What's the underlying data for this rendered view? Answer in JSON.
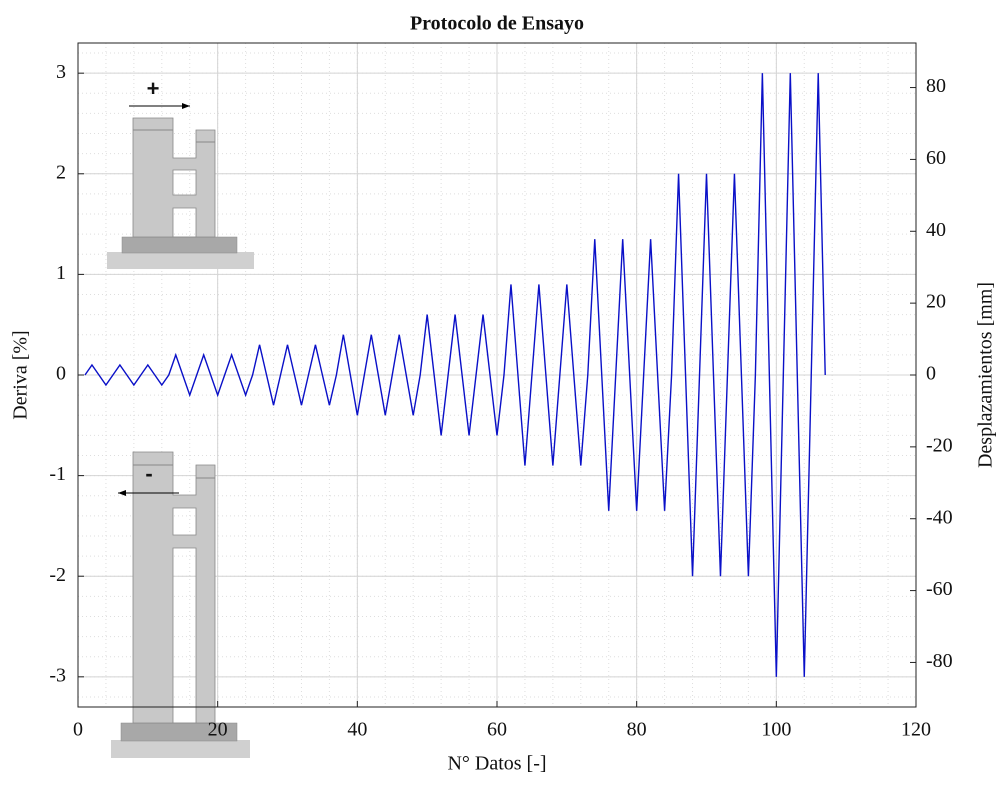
{
  "chart_data": {
    "type": "line",
    "title": "Protocolo de Ensayo",
    "xlabel": "N° Datos [-]",
    "ylabel": "Deriva [%]",
    "y2label": "Desplazamientos [mm]",
    "annotations": [
      "+",
      "-"
    ],
    "x": [
      1,
      2,
      3,
      4,
      5,
      6,
      7,
      8,
      9,
      10,
      11,
      12,
      13,
      14,
      15,
      16,
      17,
      18,
      19,
      20,
      21,
      22,
      23,
      24,
      25,
      26,
      27,
      28,
      29,
      30,
      31,
      32,
      33,
      34,
      35,
      36,
      37,
      38,
      39,
      40,
      41,
      42,
      43,
      44,
      45,
      46,
      47,
      48,
      49,
      50,
      51,
      52,
      53,
      54,
      55,
      56,
      57,
      58,
      59,
      60,
      61,
      62,
      63,
      64,
      65,
      66,
      67,
      68,
      69,
      70,
      71,
      72,
      73,
      74,
      75,
      76,
      77,
      78,
      79,
      80,
      81,
      82,
      83,
      84,
      85,
      86,
      87,
      88,
      89,
      90,
      91,
      92,
      93,
      94,
      95,
      96,
      97,
      98,
      99,
      100,
      101,
      102,
      103,
      104,
      105,
      106,
      107
    ],
    "series": [
      {
        "color": "#0a10c8",
        "values": [
          0,
          0.1,
          0,
          -0.1,
          0,
          0.1,
          0,
          -0.1,
          0,
          0.1,
          0,
          -0.1,
          0,
          0.2,
          0,
          -0.2,
          0,
          0.2,
          0,
          -0.2,
          0,
          0.2,
          0,
          -0.2,
          0,
          0.3,
          0,
          -0.3,
          0,
          0.3,
          0,
          -0.3,
          0,
          0.3,
          0,
          -0.3,
          0,
          0.4,
          0,
          -0.4,
          0,
          0.4,
          0,
          -0.4,
          0,
          0.4,
          0,
          -0.4,
          0,
          0.6,
          0,
          -0.6,
          0,
          0.6,
          0,
          -0.6,
          0,
          0.6,
          0,
          -0.6,
          0,
          0.9,
          0,
          -0.9,
          0,
          0.9,
          0,
          -0.9,
          0,
          0.9,
          0,
          -0.9,
          0,
          1.35,
          0,
          -1.35,
          0,
          1.35,
          0,
          -1.35,
          0,
          1.35,
          0,
          -1.35,
          0,
          2,
          0,
          -2,
          0,
          2,
          0,
          -2,
          0,
          2,
          0,
          -2,
          0,
          3,
          0,
          -3,
          0,
          3,
          0,
          -3,
          0,
          3,
          0
        ]
      }
    ],
    "xlim": [
      0,
      120
    ],
    "xticks": [
      0,
      20,
      40,
      60,
      80,
      100,
      120
    ],
    "ylim": [
      -3.3,
      3.3
    ],
    "yticks": [
      -3,
      -2,
      -1,
      0,
      1,
      2,
      3
    ],
    "y2lim": [
      -92.4,
      92.4
    ],
    "y2ticks": [
      -80,
      -60,
      -40,
      -20,
      0,
      20,
      40,
      60,
      80
    ],
    "grid": true,
    "minor_grid": true
  }
}
